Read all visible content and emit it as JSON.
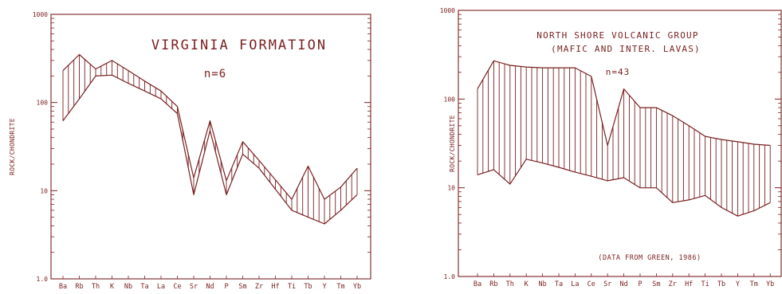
{
  "figure": {
    "color": "#7a1f1f",
    "panels": [
      {
        "ylabel": "ROCK/CHONDRITE",
        "title": "VIRGINIA FORMATION",
        "n_label": "n=6",
        "note": "",
        "y_ticks": [
          "1000",
          "100",
          "10",
          "1.0"
        ],
        "categories": [
          "Ba",
          "Rb",
          "Th",
          "K",
          "Nb",
          "Ta",
          "La",
          "Ce",
          "Sr",
          "Nd",
          "P",
          "Sm",
          "Zr",
          "Hf",
          "Ti",
          "Tb",
          "Y",
          "Tm",
          "Yb"
        ]
      },
      {
        "ylabel": "ROCK/CHONDRITE",
        "title": "NORTH SHORE VOLCANIC GROUP",
        "subtitle": "(MAFIC AND INTER. LAVAS)",
        "n_label": "n=43",
        "note": "(DATA FROM GREEN, 1986)",
        "y_ticks": [
          "1000",
          "100",
          "10",
          "1.0"
        ],
        "categories": [
          "Ba",
          "Rb",
          "Th",
          "K",
          "Nb",
          "Ta",
          "La",
          "Ce",
          "Sr",
          "Nd",
          "P",
          "Sm",
          "Zr",
          "Hf",
          "Ti",
          "Tb",
          "Y",
          "Tm",
          "Yb"
        ]
      }
    ]
  },
  "chart_data": [
    {
      "type": "area",
      "title": "VIRGINIA FORMATION",
      "ylabel": "ROCK/CHONDRITE",
      "yscale": "log",
      "ylim": [
        1,
        1000
      ],
      "categories": [
        "Ba",
        "Rb",
        "Th",
        "K",
        "Nb",
        "Ta",
        "La",
        "Ce",
        "Sr",
        "Nd",
        "P",
        "Sm",
        "Zr",
        "Hf",
        "Ti",
        "Tb",
        "Y",
        "Tm",
        "Yb"
      ],
      "series": [
        {
          "values": [
            230,
            350,
            240,
            300,
            230,
            175,
            135,
            90,
            14,
            62,
            13,
            36,
            22,
            null,
            8,
            19,
            8,
            11,
            18
          ]
        },
        {
          "values": [
            62,
            110,
            200,
            205,
            165,
            135,
            110,
            75,
            9,
            48,
            9,
            26,
            18,
            null,
            6,
            5,
            4.2,
            6,
            9
          ]
        }
      ],
      "n": "n=6"
    },
    {
      "type": "area",
      "title": "NORTH SHORE VOLCANIC GROUP",
      "subtitle": "(MAFIC AND INTER. LAVAS)",
      "ylabel": "ROCK/CHONDRITE",
      "yscale": "log",
      "ylim": [
        1,
        1000
      ],
      "categories": [
        "Ba",
        "Rb",
        "Th",
        "K",
        "Nb",
        "Ta",
        "La",
        "Ce",
        "Sr",
        "Nd",
        "P",
        "Sm",
        "Zr",
        "Hf",
        "Ti",
        "Tb",
        "Y",
        "Tm",
        "Yb"
      ],
      "series": [
        {
          "values": [
            130,
            270,
            240,
            230,
            225,
            225,
            225,
            180,
            30,
            130,
            80,
            80,
            65,
            50,
            38,
            35,
            33,
            31,
            30
          ]
        },
        {
          "values": [
            14,
            16,
            11,
            21,
            19,
            17,
            15,
            13.5,
            12,
            13,
            10,
            10,
            6.8,
            7.3,
            8.2,
            6,
            4.8,
            5.5,
            6.8
          ]
        }
      ],
      "n": "n=43",
      "annotation": "(DATA FROM GREEN, 1986)"
    }
  ]
}
